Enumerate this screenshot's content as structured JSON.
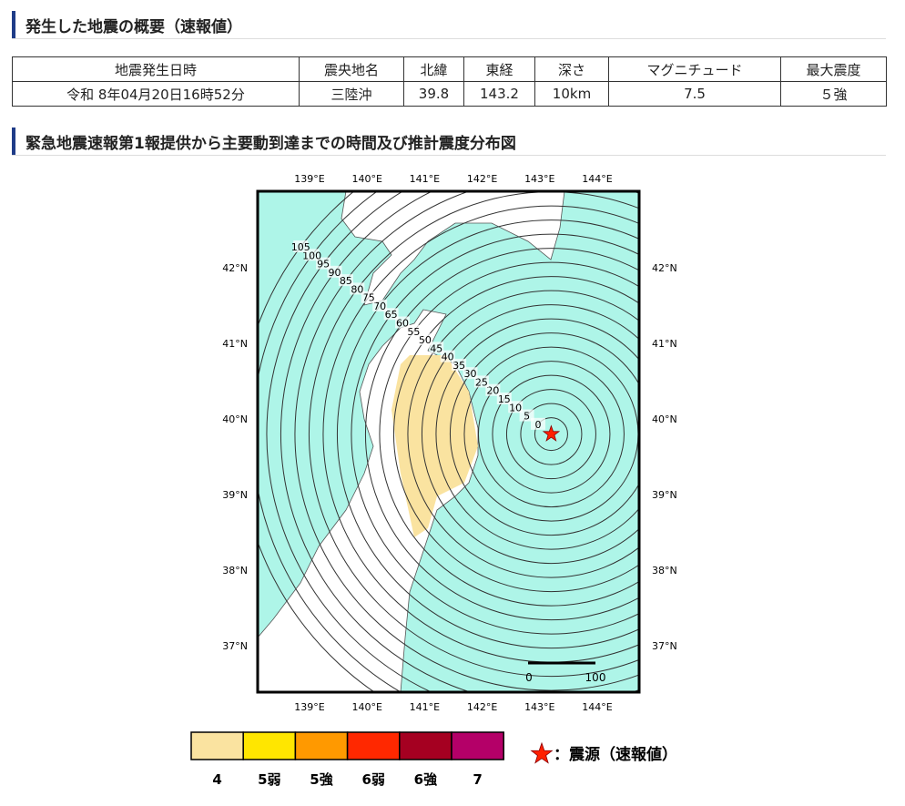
{
  "sections": [
    {
      "title": "発生した地震の概要（速報値）"
    },
    {
      "title": "緊急地震速報第1報提供から主要動到達までの時間及び推計震度分布図"
    }
  ],
  "table": {
    "headers": [
      "地震発生日時",
      "震央地名",
      "北緯",
      "東経",
      "深さ",
      "マグニチュード",
      "最大震度"
    ],
    "rows": [
      [
        "令和 8年04月20日16時52分",
        "三陸沖",
        "39.8",
        "143.2",
        "10km",
        "7.5",
        "５強"
      ]
    ]
  },
  "map": {
    "lon_labels": [
      "139°E",
      "140°E",
      "141°E",
      "142°E",
      "143°E",
      "144°E"
    ],
    "lat_labels": [
      "42°N",
      "41°N",
      "40°N",
      "39°N",
      "38°N",
      "37°N"
    ],
    "contours": [
      0,
      5,
      10,
      15,
      20,
      25,
      30,
      35,
      40,
      45,
      50,
      55,
      60,
      65,
      70,
      75,
      80,
      85,
      90,
      95,
      100,
      105
    ],
    "scale_labels": [
      "0",
      "100"
    ]
  },
  "legend": {
    "items": [
      {
        "label": "4",
        "color": "#fae3a0"
      },
      {
        "label": "5弱",
        "color": "#ffe600"
      },
      {
        "label": "5強",
        "color": "#ff9900"
      },
      {
        "label": "6弱",
        "color": "#ff2800"
      },
      {
        "label": "6強",
        "color": "#a50021"
      },
      {
        "label": "7",
        "color": "#b40068"
      }
    ],
    "epicenter": "：震源（速報値）"
  }
}
